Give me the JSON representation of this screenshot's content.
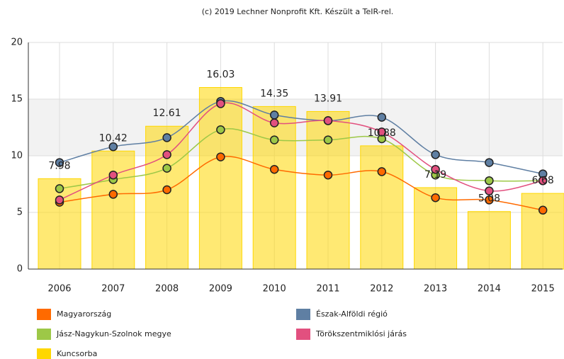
{
  "chart_data": {
    "type": "combo",
    "title": "(c) 2019 Lechner Nonprofit Kft. Készült a TeIR-rel.",
    "categories": [
      "2006",
      "2007",
      "2008",
      "2009",
      "2010",
      "2011",
      "2012",
      "2013",
      "2014",
      "2015"
    ],
    "ylim": [
      0,
      20
    ],
    "yticks": [
      0,
      5,
      10,
      15,
      20
    ],
    "grid": true,
    "series": [
      {
        "name": "Magyarország",
        "type": "line",
        "color": "#ff6a00",
        "values": [
          5.9,
          6.6,
          7.0,
          9.9,
          8.8,
          8.3,
          8.6,
          6.3,
          6.1,
          5.2
        ]
      },
      {
        "name": "Észak-Alföldi régió",
        "type": "line",
        "color": "#5f7fa3",
        "values": [
          9.4,
          10.8,
          11.6,
          14.8,
          13.6,
          13.1,
          13.4,
          10.1,
          9.4,
          8.4
        ]
      },
      {
        "name": "Jász-Nagykun-Szolnok megye",
        "type": "line",
        "color": "#9dc847",
        "values": [
          7.1,
          7.9,
          8.9,
          12.3,
          11.4,
          11.4,
          11.5,
          8.3,
          7.8,
          7.8
        ]
      },
      {
        "name": "Törökszentmiklósi járás",
        "type": "line",
        "color": "#e2507f",
        "values": [
          6.1,
          8.3,
          10.1,
          14.6,
          12.9,
          13.1,
          12.1,
          8.8,
          6.9,
          7.8
        ]
      },
      {
        "name": "Kuncsorba",
        "type": "bar",
        "color": "#ffd700",
        "values": [
          7.98,
          10.42,
          12.61,
          16.03,
          14.35,
          13.91,
          10.88,
          7.19,
          5.08,
          6.68
        ]
      }
    ]
  }
}
